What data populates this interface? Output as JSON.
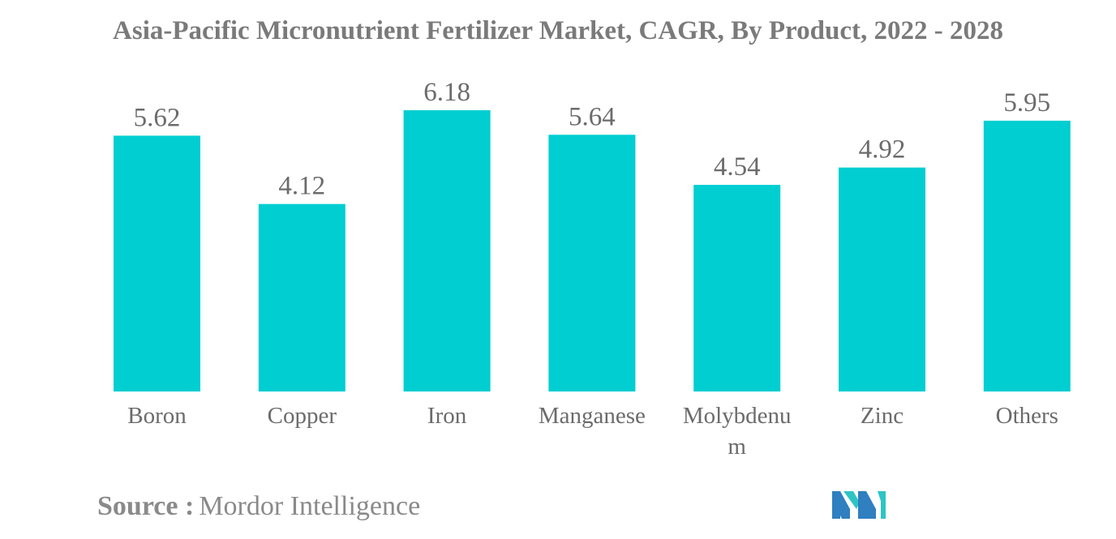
{
  "title": "Asia-Pacific Micronutrient Fertilizer Market, CAGR, By Product, 2022 - 2028",
  "source": {
    "label": "Source :",
    "text": "Mordor Intelligence"
  },
  "logo": {
    "icon": "mordor-intelligence-logo",
    "colors": [
      "#2f7fc1",
      "#2fc4c4"
    ]
  },
  "chart_data": {
    "type": "bar",
    "title": "Asia-Pacific Micronutrient Fertilizer Market, CAGR, By Product, 2022 - 2028",
    "categories": [
      "Boron",
      "Copper",
      "Iron",
      "Manganese",
      "Molybdenum",
      "Zinc",
      "Others"
    ],
    "category_display": [
      [
        "Boron"
      ],
      [
        "Copper"
      ],
      [
        "Iron"
      ],
      [
        "Manganese"
      ],
      [
        "Molybdenu",
        "m"
      ],
      [
        "Zinc"
      ],
      [
        "Others"
      ]
    ],
    "values": [
      5.62,
      4.12,
      6.18,
      5.64,
      4.54,
      4.92,
      5.95
    ],
    "value_labels": [
      "5.62",
      "4.12",
      "6.18",
      "5.64",
      "4.54",
      "4.92",
      "5.95"
    ],
    "xlabel": "",
    "ylabel": "",
    "ylim": [
      0,
      6.18
    ],
    "grid": false,
    "legend": "none",
    "bar_color": "#00ced1"
  }
}
